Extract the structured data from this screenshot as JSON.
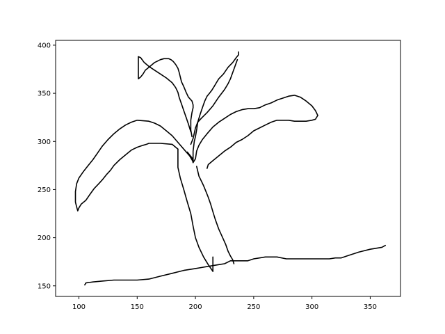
{
  "chart_data": {
    "type": "line",
    "title": "",
    "xlabel": "",
    "ylabel": "",
    "xlim": [
      80,
      376
    ],
    "ylim": [
      139,
      405
    ],
    "x_ticks": [
      100,
      150,
      200,
      250,
      300,
      350
    ],
    "y_ticks": [
      150,
      200,
      250,
      300,
      350,
      400
    ],
    "x_tick_labels": [
      "100",
      "150",
      "200",
      "250",
      "300",
      "350"
    ],
    "y_tick_labels": [
      "150",
      "200",
      "250",
      "300",
      "350",
      "400"
    ],
    "grid": false,
    "line_color": "#000000",
    "series": [
      {
        "x": [
          105,
          106,
          112,
          120,
          130,
          140,
          150,
          160,
          170,
          180,
          190,
          200,
          205,
          210,
          215,
          220,
          225,
          230,
          240,
          245,
          250,
          255,
          260,
          270,
          278,
          290,
          300,
          310,
          315,
          320,
          325,
          330,
          340,
          350,
          360,
          363
        ],
        "y": [
          151,
          153,
          154,
          155,
          156,
          156,
          156,
          157,
          160,
          163,
          166,
          168,
          169,
          170,
          171,
          172,
          173,
          176,
          176,
          176,
          178,
          179,
          180,
          180,
          178,
          178,
          178,
          178,
          178,
          179,
          179,
          181,
          185,
          188,
          190,
          192
        ]
      },
      {
        "x": [
          215,
          215
        ],
        "y": [
          165,
          180
        ]
      },
      {
        "x": [
          215,
          211,
          207,
          203,
          200,
          198,
          196,
          193,
          190,
          187,
          185,
          185
        ],
        "y": [
          165,
          172,
          180,
          190,
          200,
          212,
          225,
          237,
          250,
          262,
          273,
          292
        ]
      },
      {
        "x": [
          233,
          232,
          230,
          228,
          226,
          223,
          220,
          217,
          215,
          213,
          211,
          209,
          207,
          205,
          203,
          201
        ],
        "y": [
          173,
          177,
          181,
          186,
          193,
          201,
          209,
          219,
          227,
          235,
          242,
          248,
          254,
          259,
          264,
          274
        ]
      },
      {
        "x": [
          185,
          180,
          170,
          160,
          158,
          155,
          150,
          145,
          140,
          135,
          130,
          127,
          124,
          120,
          117,
          113,
          110,
          106,
          102,
          100,
          99
        ],
        "y": [
          292,
          297,
          298,
          298,
          297,
          296,
          294,
          291,
          286,
          281,
          275,
          270,
          266,
          260,
          256,
          251,
          246,
          239,
          235,
          231,
          228
        ]
      },
      {
        "x": [
          99,
          98,
          97,
          97,
          98,
          100,
          104,
          108,
          112,
          116,
          120,
          125,
          130,
          135,
          140,
          145,
          150,
          160,
          165,
          170,
          175,
          180,
          185,
          190,
          195,
          198
        ],
        "y": [
          228,
          232,
          237,
          248,
          256,
          262,
          269,
          275,
          281,
          288,
          295,
          302,
          308,
          313,
          317,
          320,
          322,
          321,
          319,
          316,
          311,
          306,
          299,
          292,
          285,
          279
        ]
      },
      {
        "x": [
          193,
          197,
          198
        ],
        "y": [
          289,
          283,
          278
        ]
      },
      {
        "x": [
          198,
          200,
          201,
          203,
          206,
          210,
          215,
          220,
          225,
          230,
          235,
          240,
          245,
          250,
          255,
          260,
          265,
          270,
          275,
          280,
          285,
          290,
          295,
          300,
          303,
          305
        ],
        "y": [
          278,
          282,
          290,
          296,
          302,
          308,
          315,
          320,
          324,
          328,
          331,
          333,
          334,
          334,
          335,
          338,
          340,
          343,
          345,
          347,
          348,
          346,
          342,
          337,
          332,
          327
        ]
      },
      {
        "x": [
          305,
          303,
          300,
          295,
          290,
          285,
          280,
          275,
          270,
          265,
          260,
          255,
          250,
          245,
          240,
          235,
          230,
          225,
          220,
          215,
          211,
          210
        ],
        "y": [
          327,
          323,
          322,
          321,
          321,
          321,
          322,
          322,
          322,
          320,
          317,
          314,
          311,
          306,
          302,
          299,
          294,
          290,
          285,
          280,
          276,
          272
        ]
      },
      {
        "x": [
          198,
          198,
          199,
          200,
          201,
          202,
          204,
          206,
          208,
          210,
          212,
          214,
          216,
          218,
          220,
          224,
          228,
          232,
          235,
          237,
          237
        ],
        "y": [
          280,
          290,
          300,
          305,
          312,
          320,
          328,
          335,
          342,
          347,
          350,
          353,
          357,
          361,
          365,
          370,
          377,
          382,
          387,
          390,
          393
        ]
      },
      {
        "x": [
          196,
          198,
          200,
          202,
          205,
          210,
          215,
          220,
          225,
          228,
          230,
          233,
          236
        ],
        "y": [
          297,
          303,
          314,
          320,
          324,
          330,
          337,
          346,
          354,
          360,
          365,
          375,
          385
        ]
      },
      {
        "x": [
          197,
          196,
          196,
          197,
          198,
          198,
          197,
          194,
          192,
          190,
          188,
          187,
          186,
          185,
          183,
          181,
          179,
          177,
          175,
          173,
          170,
          165,
          160,
          157,
          155,
          153,
          151,
          151
        ],
        "y": [
          305,
          312,
          322,
          330,
          335,
          338,
          342,
          346,
          351,
          357,
          362,
          367,
          372,
          376,
          380,
          383,
          385,
          386,
          386,
          386,
          385,
          382,
          377,
          374,
          370,
          367,
          365,
          388
        ]
      },
      {
        "x": [
          151,
          153,
          156,
          160,
          165,
          170,
          175,
          180,
          183,
          185,
          186,
          188,
          190,
          192,
          194,
          196
        ],
        "y": [
          388,
          387,
          382,
          378,
          374,
          370,
          366,
          361,
          356,
          351,
          346,
          339,
          332,
          325,
          318,
          310
        ]
      }
    ]
  }
}
